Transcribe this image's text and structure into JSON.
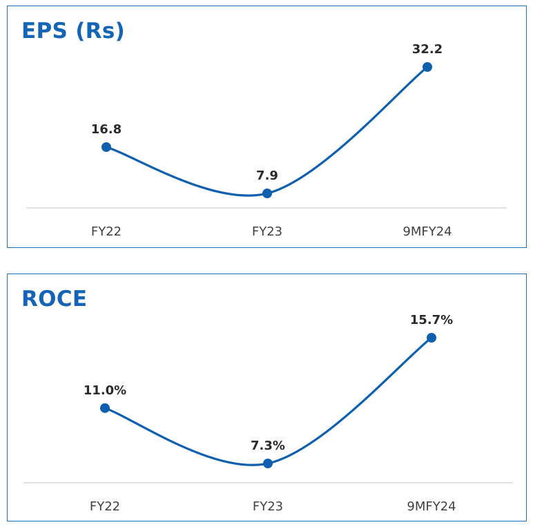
{
  "colors": {
    "accent": "#1565b7",
    "line": "#0e5fae",
    "axis": "#d0d0d0",
    "border": "#1f6fb5"
  },
  "chart_data": [
    {
      "type": "line",
      "title": "EPS (Rs)",
      "categories": [
        "FY22",
        "FY23",
        "9MFY24"
      ],
      "values": [
        16.8,
        7.9,
        32.2
      ],
      "value_labels": [
        "16.8",
        "7.9",
        "32.2"
      ],
      "smooth": true,
      "grid": false,
      "legend": "none"
    },
    {
      "type": "line",
      "title": "ROCE",
      "categories": [
        "FY22",
        "FY23",
        "9MFY24"
      ],
      "values": [
        11.0,
        7.3,
        15.7
      ],
      "value_labels": [
        "11.0%",
        "7.3%",
        "15.7%"
      ],
      "smooth": true,
      "grid": false,
      "legend": "none"
    }
  ]
}
